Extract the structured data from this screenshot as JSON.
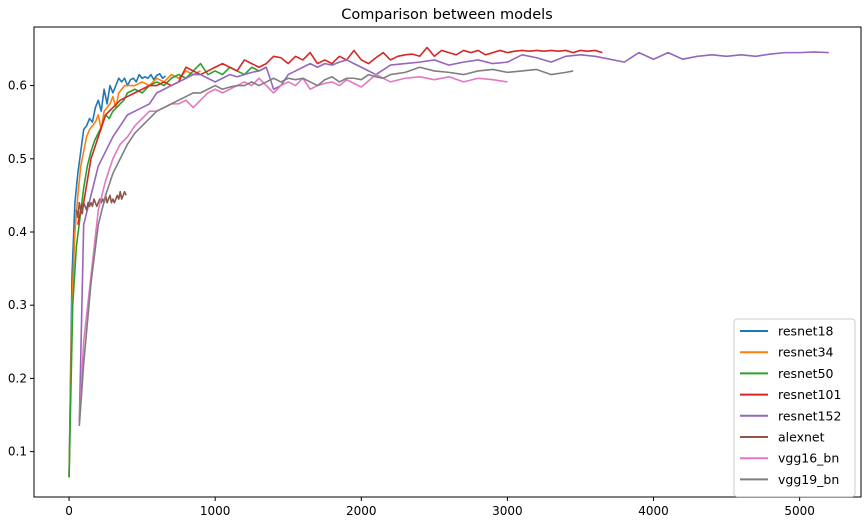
{
  "chart_data": {
    "type": "line",
    "title": "Comparison between models",
    "xlabel": "",
    "ylabel": "",
    "xlim": [
      -240,
      5420
    ],
    "ylim": [
      0.038,
      0.68
    ],
    "x_ticks": [
      0,
      1000,
      2000,
      3000,
      4000,
      5000
    ],
    "y_ticks": [
      0.1,
      0.2,
      0.3,
      0.4,
      0.5,
      0.6
    ],
    "grid": false,
    "legend_position": "lower-right",
    "series": [
      {
        "name": "resnet18",
        "color": "#1f77b4",
        "x": [
          0,
          20,
          40,
          60,
          80,
          100,
          120,
          140,
          160,
          180,
          200,
          220,
          240,
          260,
          280,
          300,
          320,
          340,
          360,
          380,
          400,
          420,
          440,
          460,
          480,
          500,
          520,
          540,
          560,
          580,
          600,
          620,
          640,
          660
        ],
        "y": [
          0.065,
          0.34,
          0.44,
          0.48,
          0.51,
          0.54,
          0.545,
          0.555,
          0.55,
          0.57,
          0.58,
          0.565,
          0.595,
          0.575,
          0.6,
          0.59,
          0.6,
          0.61,
          0.605,
          0.61,
          0.6,
          0.608,
          0.61,
          0.605,
          0.615,
          0.61,
          0.612,
          0.61,
          0.615,
          0.608,
          0.614,
          0.616,
          0.61,
          0.613
        ]
      },
      {
        "name": "resnet34",
        "color": "#ff7f0e",
        "x": [
          0,
          20,
          40,
          60,
          80,
          100,
          120,
          140,
          160,
          180,
          200,
          220,
          240,
          260,
          280,
          300,
          320,
          340,
          360,
          380,
          400,
          450,
          500,
          550,
          600,
          650,
          700,
          750,
          800,
          850,
          900
        ],
        "y": [
          0.065,
          0.3,
          0.4,
          0.45,
          0.49,
          0.51,
          0.53,
          0.54,
          0.545,
          0.55,
          0.56,
          0.54,
          0.565,
          0.57,
          0.575,
          0.585,
          0.57,
          0.59,
          0.595,
          0.6,
          0.6,
          0.6,
          0.605,
          0.6,
          0.61,
          0.605,
          0.615,
          0.61,
          0.62,
          0.615,
          0.62
        ]
      },
      {
        "name": "resnet50",
        "color": "#2ca02c",
        "x": [
          0,
          25,
          50,
          75,
          100,
          125,
          150,
          175,
          200,
          225,
          250,
          275,
          300,
          325,
          350,
          375,
          400,
          450,
          500,
          550,
          600,
          650,
          700,
          750,
          800,
          850,
          900,
          950,
          1000,
          1050,
          1100,
          1150,
          1200,
          1250,
          1300,
          1350
        ],
        "y": [
          0.065,
          0.3,
          0.38,
          0.42,
          0.46,
          0.49,
          0.51,
          0.525,
          0.535,
          0.545,
          0.56,
          0.555,
          0.565,
          0.57,
          0.575,
          0.58,
          0.59,
          0.595,
          0.59,
          0.6,
          0.605,
          0.6,
          0.61,
          0.615,
          0.61,
          0.62,
          0.63,
          0.615,
          0.62,
          0.615,
          0.625,
          0.62,
          0.615,
          0.625,
          0.62,
          0.625
        ]
      },
      {
        "name": "resnet101",
        "color": "#d62728",
        "x": [
          60,
          80,
          100,
          150,
          200,
          250,
          300,
          350,
          400,
          450,
          500,
          550,
          600,
          650,
          700,
          750,
          800,
          850,
          900,
          950,
          1000,
          1050,
          1100,
          1150,
          1200,
          1250,
          1300,
          1350,
          1400,
          1450,
          1500,
          1550,
          1600,
          1650,
          1700,
          1750,
          1800,
          1850,
          1900,
          1950,
          2000,
          2050,
          2100,
          2150,
          2200,
          2250,
          2300,
          2350,
          2400,
          2450,
          2500,
          2550,
          2600,
          2650,
          2700,
          2750,
          2800,
          2850,
          2900,
          2950,
          3000,
          3050,
          3100,
          3150,
          3200,
          3250,
          3300,
          3350,
          3400,
          3450,
          3500,
          3550,
          3600,
          3650
        ],
        "y": [
          0.41,
          0.43,
          0.44,
          0.5,
          0.53,
          0.56,
          0.57,
          0.58,
          0.585,
          0.59,
          0.595,
          0.6,
          0.6,
          0.605,
          0.6,
          0.605,
          0.625,
          0.62,
          0.615,
          0.62,
          0.625,
          0.63,
          0.625,
          0.62,
          0.635,
          0.63,
          0.625,
          0.63,
          0.64,
          0.638,
          0.63,
          0.64,
          0.635,
          0.645,
          0.63,
          0.635,
          0.63,
          0.64,
          0.635,
          0.648,
          0.635,
          0.63,
          0.638,
          0.645,
          0.635,
          0.64,
          0.642,
          0.643,
          0.64,
          0.652,
          0.64,
          0.648,
          0.645,
          0.642,
          0.648,
          0.645,
          0.648,
          0.642,
          0.645,
          0.648,
          0.645,
          0.647,
          0.648,
          0.647,
          0.648,
          0.647,
          0.648,
          0.647,
          0.648,
          0.645,
          0.648,
          0.647,
          0.648,
          0.645
        ]
      },
      {
        "name": "resnet152",
        "color": "#9467bd",
        "x": [
          70,
          100,
          150,
          200,
          250,
          300,
          350,
          400,
          450,
          500,
          550,
          600,
          650,
          700,
          750,
          800,
          850,
          900,
          950,
          1000,
          1050,
          1100,
          1150,
          1200,
          1250,
          1300,
          1350,
          1400,
          1450,
          1500,
          1550,
          1600,
          1650,
          1700,
          1750,
          1800,
          1850,
          1900,
          1950,
          2000,
          2100,
          2200,
          2300,
          2400,
          2500,
          2600,
          2700,
          2800,
          2900,
          3000,
          3100,
          3200,
          3300,
          3400,
          3500,
          3600,
          3700,
          3800,
          3900,
          4000,
          4100,
          4200,
          4300,
          4400,
          4500,
          4600,
          4700,
          4800,
          4900,
          5000,
          5100,
          5200
        ],
        "y": [
          0.14,
          0.41,
          0.45,
          0.49,
          0.51,
          0.53,
          0.545,
          0.56,
          0.565,
          0.57,
          0.575,
          0.59,
          0.595,
          0.6,
          0.605,
          0.61,
          0.615,
          0.615,
          0.61,
          0.605,
          0.61,
          0.615,
          0.612,
          0.615,
          0.618,
          0.62,
          0.625,
          0.595,
          0.6,
          0.615,
          0.62,
          0.625,
          0.63,
          0.625,
          0.63,
          0.628,
          0.632,
          0.635,
          0.63,
          0.625,
          0.615,
          0.628,
          0.63,
          0.632,
          0.635,
          0.628,
          0.632,
          0.635,
          0.63,
          0.632,
          0.642,
          0.638,
          0.632,
          0.64,
          0.642,
          0.64,
          0.636,
          0.632,
          0.645,
          0.636,
          0.645,
          0.636,
          0.64,
          0.642,
          0.64,
          0.642,
          0.64,
          0.643,
          0.645,
          0.645,
          0.646,
          0.645
        ]
      },
      {
        "name": "alexnet",
        "color": "#8c564b",
        "x": [
          50,
          60,
          70,
          80,
          90,
          100,
          110,
          120,
          130,
          140,
          150,
          160,
          170,
          180,
          190,
          200,
          210,
          220,
          230,
          240,
          250,
          260,
          270,
          280,
          290,
          300,
          310,
          320,
          330,
          340,
          350,
          360,
          370,
          380,
          390
        ],
        "y": [
          0.43,
          0.42,
          0.44,
          0.43,
          0.425,
          0.44,
          0.435,
          0.43,
          0.44,
          0.435,
          0.44,
          0.435,
          0.445,
          0.44,
          0.435,
          0.44,
          0.445,
          0.44,
          0.445,
          0.44,
          0.45,
          0.44,
          0.445,
          0.45,
          0.44,
          0.445,
          0.44,
          0.445,
          0.45,
          0.445,
          0.455,
          0.445,
          0.45,
          0.455,
          0.45
        ]
      },
      {
        "name": "vgg16_bn",
        "color": "#e377c2",
        "x": [
          70,
          100,
          150,
          200,
          250,
          300,
          350,
          400,
          450,
          500,
          550,
          600,
          650,
          700,
          750,
          800,
          850,
          900,
          950,
          1000,
          1050,
          1100,
          1150,
          1200,
          1250,
          1300,
          1350,
          1400,
          1450,
          1500,
          1550,
          1600,
          1650,
          1700,
          1750,
          1800,
          1850,
          1900,
          1950,
          2000,
          2100,
          2200,
          2300,
          2400,
          2500,
          2600,
          2700,
          2800,
          2900,
          3000
        ],
        "y": [
          0.14,
          0.25,
          0.34,
          0.43,
          0.47,
          0.5,
          0.52,
          0.53,
          0.545,
          0.555,
          0.565,
          0.565,
          0.57,
          0.575,
          0.575,
          0.58,
          0.57,
          0.58,
          0.59,
          0.595,
          0.59,
          0.595,
          0.6,
          0.605,
          0.6,
          0.61,
          0.6,
          0.59,
          0.6,
          0.605,
          0.6,
          0.61,
          0.595,
          0.6,
          0.603,
          0.605,
          0.6,
          0.608,
          0.603,
          0.598,
          0.615,
          0.605,
          0.61,
          0.612,
          0.608,
          0.612,
          0.605,
          0.61,
          0.608,
          0.605
        ]
      },
      {
        "name": "vgg19_bn",
        "color": "#7f7f7f",
        "x": [
          70,
          100,
          150,
          200,
          250,
          300,
          350,
          400,
          450,
          500,
          550,
          600,
          650,
          700,
          750,
          800,
          850,
          900,
          950,
          1000,
          1050,
          1100,
          1150,
          1200,
          1250,
          1300,
          1350,
          1400,
          1450,
          1500,
          1550,
          1600,
          1650,
          1700,
          1750,
          1800,
          1850,
          1900,
          1950,
          2000,
          2050,
          2100,
          2150,
          2200,
          2300,
          2400,
          2500,
          2600,
          2700,
          2800,
          2900,
          3000,
          3100,
          3200,
          3300,
          3400,
          3450
        ],
        "y": [
          0.135,
          0.22,
          0.33,
          0.41,
          0.45,
          0.48,
          0.5,
          0.52,
          0.535,
          0.545,
          0.555,
          0.565,
          0.57,
          0.575,
          0.58,
          0.585,
          0.59,
          0.59,
          0.595,
          0.6,
          0.595,
          0.598,
          0.6,
          0.6,
          0.605,
          0.6,
          0.605,
          0.61,
          0.605,
          0.61,
          0.608,
          0.61,
          0.605,
          0.6,
          0.608,
          0.612,
          0.605,
          0.61,
          0.61,
          0.608,
          0.615,
          0.612,
          0.61,
          0.615,
          0.618,
          0.625,
          0.62,
          0.618,
          0.615,
          0.62,
          0.622,
          0.618,
          0.62,
          0.622,
          0.615,
          0.618,
          0.62
        ]
      }
    ]
  }
}
